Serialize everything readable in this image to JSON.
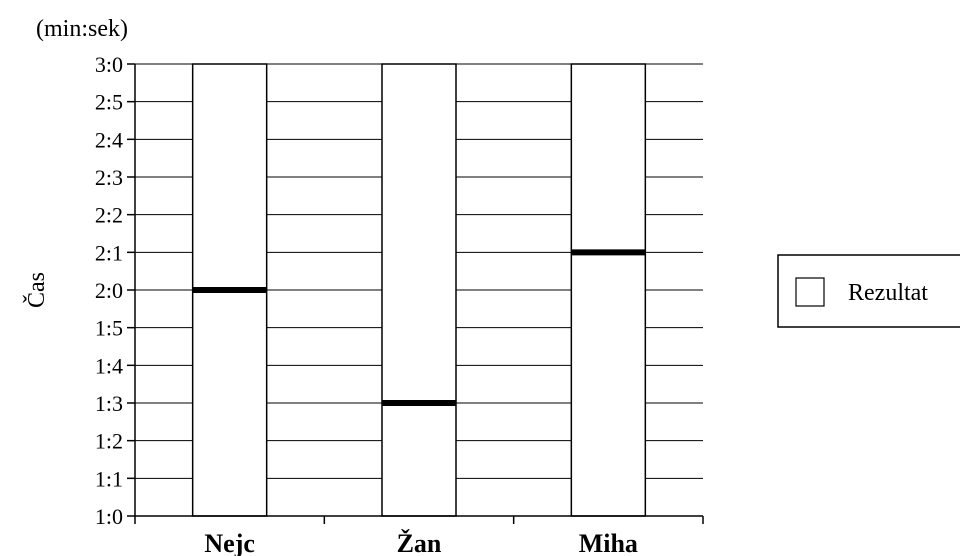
{
  "chart_data": {
    "type": "bar",
    "unit_label": "(min:sek)",
    "ylabel": "Čas",
    "xlabel": "",
    "title": "",
    "categories": [
      "Nejc",
      "Žan",
      "Miha"
    ],
    "y_ticks": [
      "1:0",
      "1:1",
      "1:2",
      "1:3",
      "1:4",
      "1:5",
      "2:0",
      "2:1",
      "2:2",
      "2:3",
      "2:4",
      "2:5",
      "3:0"
    ],
    "ylim": [
      0,
      12
    ],
    "series": [
      {
        "name": "Rezultat",
        "values": [
          6,
          3,
          7
        ]
      }
    ],
    "bar_top": 12,
    "grid": true,
    "legend": {
      "placement": "right",
      "entries": [
        "Rezultat"
      ]
    },
    "colors": {
      "bar_fill": "#ffffff",
      "marker": "#000000",
      "grid": "#000000"
    }
  }
}
